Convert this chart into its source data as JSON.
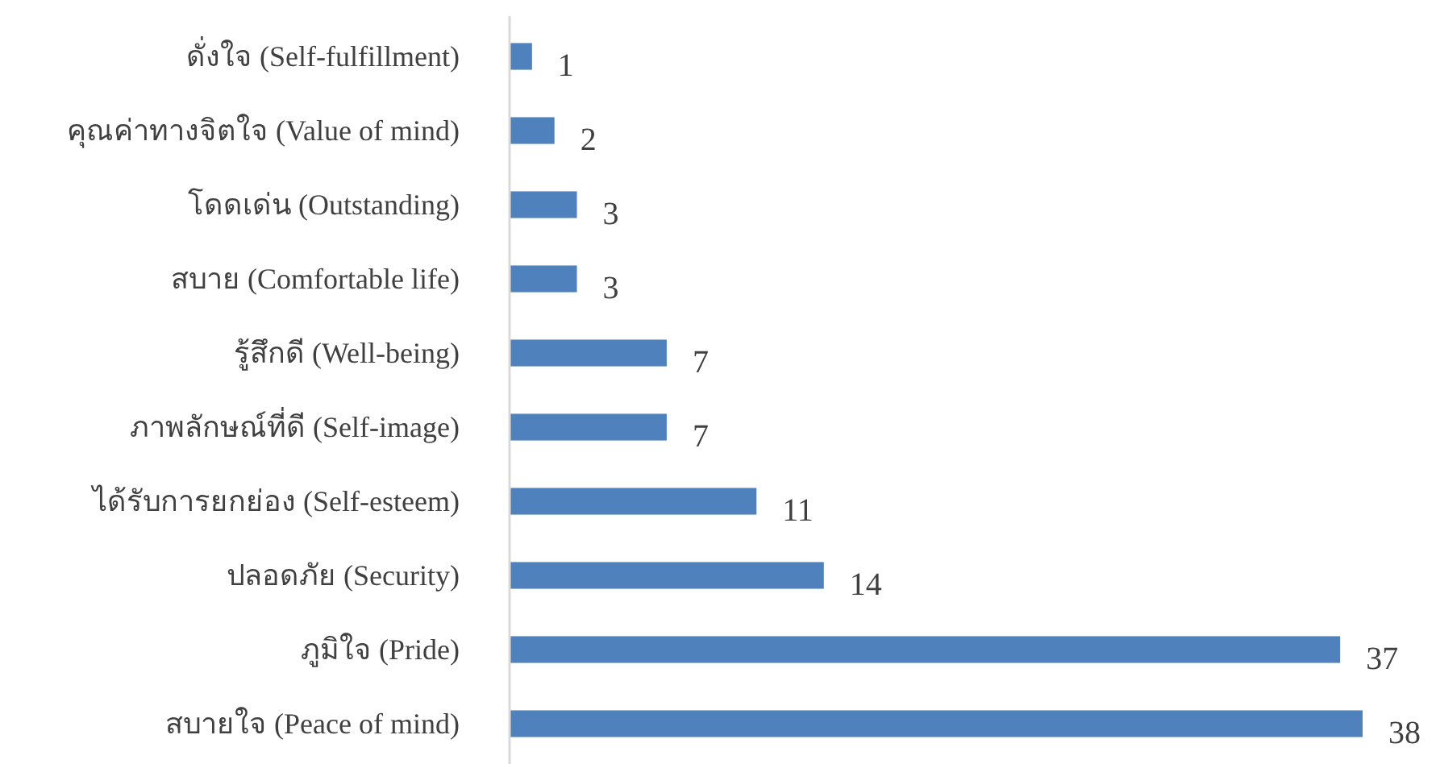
{
  "chart_data": {
    "type": "bar",
    "orientation": "horizontal",
    "data_labels": true,
    "color": "#4f81bd",
    "categories": [
      "ดั่งใจ (Self-fulfillment)",
      "คุณค่าทางจิตใจ (Value of mind)",
      "โดดเด่น (Outstanding)",
      "สบาย (Comfortable life)",
      "รู้สึกดี (Well-being)",
      "ภาพลักษณ์ที่ดี (Self-image)",
      "ได้รับการยกย่อง (Self-esteem)",
      "ปลอดภัย (Security)",
      "ภูมิใจ (Pride)",
      "สบายใจ (Peace of mind)"
    ],
    "values": [
      1,
      2,
      3,
      3,
      7,
      7,
      11,
      14,
      37,
      38
    ]
  }
}
